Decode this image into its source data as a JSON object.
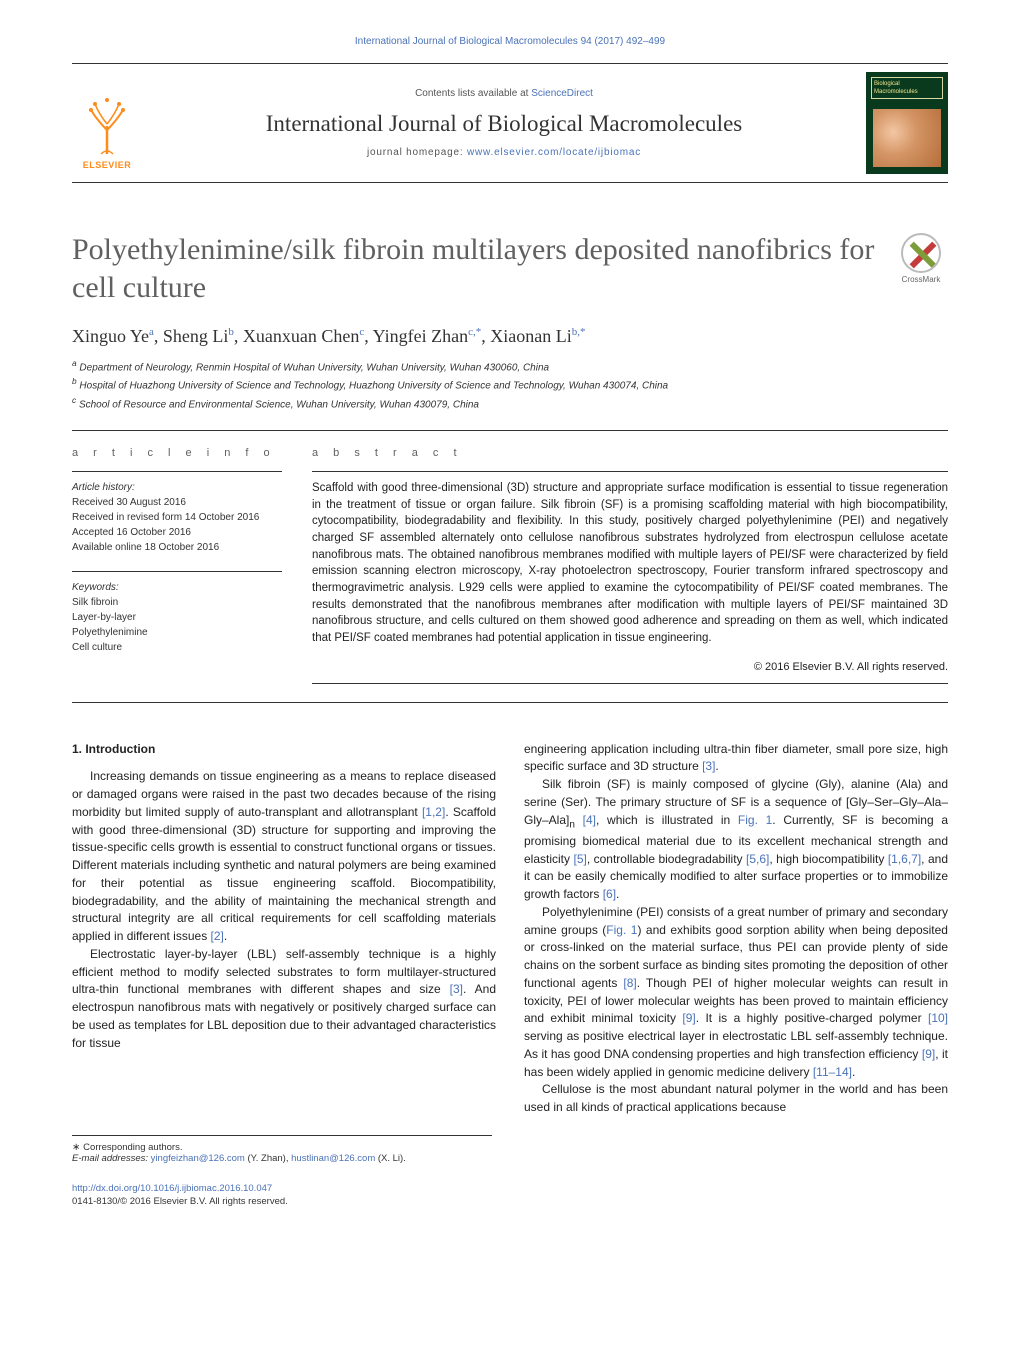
{
  "header": {
    "citation_line": "International Journal of Biological Macromolecules 94 (2017) 492–499",
    "sciencedirect_line_pre": "Contents lists available at ",
    "sciencedirect_line_link": "ScienceDirect",
    "journal_title": "International Journal of Biological Macromolecules",
    "homepage_label": "journal homepage: ",
    "homepage_url": "www.elsevier.com/locate/ijbiomac",
    "elsevier_label": "ELSEVIER",
    "cover_text": "Biological Macromolecules",
    "crossmark_label": "CrossMark",
    "colors": {
      "link": "#4a72b8",
      "elsevier_orange": "#ff8b1a",
      "title_grey": "#606060",
      "cover_bg": "#0a3a1e"
    }
  },
  "article": {
    "title": "Polyethylenimine/silk fibroin multilayers deposited nanofibrics for cell culture",
    "authors_html": "Xinguo Ye<sup>a</sup>, Sheng Li<sup>b</sup>, Xuanxuan Chen<sup>c</sup>, Yingfei Zhan<sup>c,*</sup>, Xiaonan Li<sup>b,*</sup>",
    "affiliations": [
      {
        "key": "a",
        "text": "Department of Neurology, Renmin Hospital of Wuhan University, Wuhan University, Wuhan 430060, China"
      },
      {
        "key": "b",
        "text": "Hospital of Huazhong University of Science and Technology, Huazhong University of Science and Technology, Wuhan 430074, China"
      },
      {
        "key": "c",
        "text": "School of Resource and Environmental Science, Wuhan University, Wuhan 430079, China"
      }
    ]
  },
  "article_info": {
    "heading": "a r t i c l e   i n f o",
    "history_label": "Article history:",
    "history": [
      "Received 30 August 2016",
      "Received in revised form 14 October 2016",
      "Accepted 16 October 2016",
      "Available online 18 October 2016"
    ],
    "keywords_label": "Keywords:",
    "keywords": [
      "Silk fibroin",
      "Layer-by-layer",
      "Polyethylenimine",
      "Cell culture"
    ]
  },
  "abstract": {
    "heading": "a b s t r a c t",
    "text": "Scaffold with good three-dimensional (3D) structure and appropriate surface modification is essential to tissue regeneration in the treatment of tissue or organ failure. Silk fibroin (SF) is a promising scaffolding material with high biocompatibility, cytocompatibility, biodegradability and flexibility. In this study, positively charged polyethylenimine (PEI) and negatively charged SF assembled alternately onto cellulose nanofibrous substrates hydrolyzed from electrospun cellulose acetate nanofibrous mats. The obtained nanofibrous membranes modified with multiple layers of PEI/SF were characterized by field emission scanning electron microscopy, X-ray photoelectron spectroscopy, Fourier transform infrared spectroscopy and thermogravimetric analysis. L929 cells were applied to examine the cytocompatibility of PEI/SF coated membranes. The results demonstrated that the nanofibrous membranes after modification with multiple layers of PEI/SF maintained 3D nanofibrous structure, and cells cultured on them showed good adherence and spreading on them as well, which indicated that PEI/SF coated membranes had potential application in tissue engineering.",
    "copyright": "© 2016 Elsevier B.V. All rights reserved."
  },
  "body": {
    "section_heading": "1. Introduction",
    "left_col": [
      "Increasing demands on tissue engineering as a means to replace diseased or damaged organs were raised in the past two decades because of the rising morbidity but limited supply of auto-transplant and allotransplant <span class=\"ref\">[1,2]</span>. Scaffold with good three-dimensional (3D) structure for supporting and improving the tissue-specific cells growth is essential to construct functional organs or tissues. Different materials including synthetic and natural polymers are being examined for their potential as tissue engineering scaffold. Biocompatibility, biodegradability, and the ability of maintaining the mechanical strength and structural integrity are all critical requirements for cell scaffolding materials applied in different issues <span class=\"ref\">[2]</span>.",
      "Electrostatic layer-by-layer (LBL) self-assembly technique is a highly efficient method to modify selected substrates to form multilayer-structured ultra-thin functional membranes with different shapes and size <span class=\"ref\">[3]</span>. And electrospun nanofibrous mats with negatively or positively charged surface can be used as templates for LBL deposition due to their advantaged characteristics for tissue"
    ],
    "right_col": [
      "engineering application including ultra-thin fiber diameter, small pore size, high specific surface and 3D structure <span class=\"ref\">[3]</span>.",
      "Silk fibroin (SF) is mainly composed of glycine (Gly), alanine (Ala) and serine (Ser). The primary structure of SF is a sequence of [Gly–Ser–Gly–Ala–Gly–Ala]<sub>n</sub> <span class=\"ref\">[4]</span>, which is illustrated in <span class=\"ref\">Fig. 1</span>. Currently, SF is becoming a promising biomedical material due to its excellent mechanical strength and elasticity <span class=\"ref\">[5]</span>, controllable biodegradability <span class=\"ref\">[5,6]</span>, high biocompatibility <span class=\"ref\">[1,6,7]</span>, and it can be easily chemically modified to alter surface properties or to immobilize growth factors <span class=\"ref\">[6]</span>.",
      "Polyethylenimine (PEI) consists of a great number of primary and secondary amine groups (<span class=\"ref\">Fig. 1</span>) and exhibits good sorption ability when being deposited or cross-linked on the material surface, thus PEI can provide plenty of side chains on the sorbent surface as binding sites promoting the deposition of other functional agents <span class=\"ref\">[8]</span>. Though PEI of higher molecular weights can result in toxicity, PEI of lower molecular weights has been proved to maintain efficiency and exhibit minimal toxicity <span class=\"ref\">[9]</span>. It is a highly positive-charged polymer <span class=\"ref\">[10]</span> serving as positive electrical layer in electrostatic LBL self-assembly technique. As it has good DNA condensing properties and high transfection efficiency <span class=\"ref\">[9]</span>, it has been widely applied in genomic medicine delivery <span class=\"ref\">[11–14]</span>.",
      "Cellulose is the most abundant natural polymer in the world and has been used in all kinds of practical applications because"
    ]
  },
  "footnotes": {
    "corr_label": "Corresponding authors.",
    "email_label": "E-mail addresses:",
    "emails": [
      {
        "addr": "yingfeizhan@126.com",
        "who": "(Y. Zhan)"
      },
      {
        "addr": "hustlinan@126.com",
        "who": "(X. Li)"
      }
    ]
  },
  "doi": {
    "url": "http://dx.doi.org/10.1016/j.ijbiomac.2016.10.047",
    "issn_line": "0141-8130/© 2016 Elsevier B.V. All rights reserved."
  }
}
